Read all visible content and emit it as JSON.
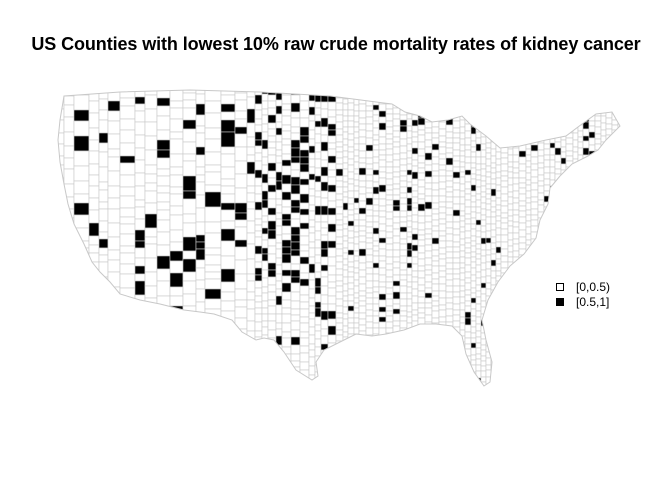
{
  "title": "US Counties with lowest 10% raw crude mortality rates of kidney cancer",
  "legend": {
    "items": [
      {
        "label": "[0,0.5)",
        "color": "#ffffff"
      },
      {
        "label": "[0.5,1]",
        "color": "#000000"
      }
    ]
  },
  "colors": {
    "county_border": "#c8c8c8",
    "fill_low": "#ffffff",
    "fill_high": "#000000"
  }
}
